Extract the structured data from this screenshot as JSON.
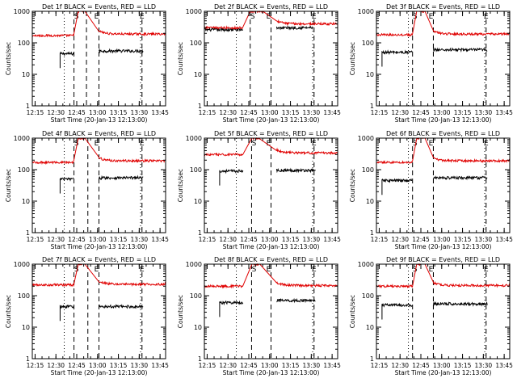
{
  "figure": {
    "x_tick_labels": [
      "12:15",
      "12:30",
      "12:45",
      "13:00",
      "13:15",
      "13:30",
      "13:45"
    ],
    "x_label": "Start Time (20-Jan-13 12:13:00)",
    "y_label": "Counts/sec",
    "y_tick_labels": [
      "1",
      "10",
      "100",
      "1000"
    ],
    "marker_labels": [
      "S",
      "E"
    ],
    "colors": {
      "events": "#000000",
      "lld": "#e00000",
      "axes": "#000000"
    }
  },
  "chart_data": [
    {
      "type": "line",
      "title": "Det 1f BLACK = Events, RED = LLD",
      "xlabel": "Start Time (20-Jan-13 12:13:00)",
      "ylabel": "Counts/sec",
      "xlim": [
        0,
        96
      ],
      "ylim": [
        1,
        1000
      ],
      "yscale": "log",
      "x_unit": "minutes after 12:13:00",
      "markers": {
        "S": {
          "start": 30,
          "end": 39
        },
        "E": {
          "start": 48,
          "end": 79
        },
        "dotted": [
          23,
          78
        ]
      },
      "series": [
        {
          "name": "Events",
          "color": "#000000",
          "segments": [
            {
              "x_start": 20,
              "x_end": 30,
              "level": 45
            },
            {
              "x_start": 48,
              "x_end": 80,
              "level": 55
            }
          ]
        },
        {
          "name": "LLD",
          "color": "#e00000",
          "segments": [
            {
              "x_start": 0,
              "x_end": 30,
              "level": 170
            },
            {
              "x_start": 33,
              "x_end": 38,
              "level": 1000
            },
            {
              "x_start": 48,
              "x_end": 96,
              "level": 190
            }
          ]
        }
      ]
    },
    {
      "type": "line",
      "title": "Det 2f BLACK = Events, RED = LLD",
      "xlabel": "Start Time (20-Jan-13 12:13:00)",
      "ylabel": "Counts/sec",
      "xlim": [
        0,
        96
      ],
      "ylim": [
        1,
        1000
      ],
      "yscale": "log",
      "x_unit": "minutes after 12:13:00",
      "markers": {
        "S": {
          "start": 33,
          "end": 48
        },
        "E": {
          "start": 48,
          "end": 79
        },
        "dotted": [
          23,
          78
        ]
      },
      "series": [
        {
          "name": "Events",
          "color": "#000000",
          "segments": [
            {
              "x_start": 0,
              "x_end": 28,
              "level": 260
            },
            {
              "x_start": 52,
              "x_end": 78,
              "level": 300
            }
          ]
        },
        {
          "name": "LLD",
          "color": "#e00000",
          "segments": [
            {
              "x_start": 0,
              "x_end": 28,
              "level": 300
            },
            {
              "x_start": 33,
              "x_end": 43,
              "level": 1000
            },
            {
              "x_start": 52,
              "x_end": 96,
              "level": 400
            }
          ]
        }
      ]
    },
    {
      "type": "line",
      "title": "Det 3f BLACK = Events, RED = LLD",
      "xlabel": "Start Time (20-Jan-13 12:13:00)",
      "ylabel": "Counts/sec",
      "xlim": [
        0,
        96
      ],
      "ylim": [
        1,
        1000
      ],
      "yscale": "log",
      "x_unit": "minutes after 12:13:00",
      "markers": {
        "S": {
          "start": 26,
          "end": 41
        },
        "E": {
          "start": 41,
          "end": 79
        },
        "dotted": [
          23,
          78
        ]
      },
      "series": [
        {
          "name": "Events",
          "color": "#000000",
          "segments": [
            {
              "x_start": 4,
              "x_end": 26,
              "level": 50
            },
            {
              "x_start": 41,
              "x_end": 80,
              "level": 60
            }
          ]
        },
        {
          "name": "LLD",
          "color": "#e00000",
          "segments": [
            {
              "x_start": 0,
              "x_end": 26,
              "level": 180
            },
            {
              "x_start": 29,
              "x_end": 35,
              "level": 1000
            },
            {
              "x_start": 41,
              "x_end": 96,
              "level": 190
            }
          ]
        }
      ]
    },
    {
      "type": "line",
      "title": "Det 4f BLACK = Events, RED = LLD",
      "xlabel": "Start Time (20-Jan-13 12:13:00)",
      "ylabel": "Counts/sec",
      "xlim": [
        0,
        96
      ],
      "ylim": [
        1,
        1000
      ],
      "yscale": "log",
      "x_unit": "minutes after 12:13:00",
      "markers": {
        "S": {
          "start": 30,
          "end": 40
        },
        "E": {
          "start": 48,
          "end": 79
        },
        "dotted": [
          23,
          78
        ]
      },
      "series": [
        {
          "name": "Events",
          "color": "#000000",
          "segments": [
            {
              "x_start": 20,
              "x_end": 30,
              "level": 50
            },
            {
              "x_start": 48,
              "x_end": 80,
              "level": 55
            }
          ]
        },
        {
          "name": "LLD",
          "color": "#e00000",
          "segments": [
            {
              "x_start": 0,
              "x_end": 30,
              "level": 170
            },
            {
              "x_start": 33,
              "x_end": 38,
              "level": 1000
            },
            {
              "x_start": 48,
              "x_end": 96,
              "level": 190
            }
          ]
        }
      ]
    },
    {
      "type": "line",
      "title": "Det 5f BLACK = Events, RED = LLD",
      "xlabel": "Start Time (20-Jan-13 12:13:00)",
      "ylabel": "Counts/sec",
      "xlim": [
        0,
        96
      ],
      "ylim": [
        1,
        1000
      ],
      "yscale": "log",
      "x_unit": "minutes after 12:13:00",
      "markers": {
        "S": {
          "start": 34,
          "end": 48
        },
        "E": {
          "start": 48,
          "end": 79
        },
        "dotted": [
          23,
          78
        ]
      },
      "series": [
        {
          "name": "Events",
          "color": "#000000",
          "segments": [
            {
              "x_start": 11,
              "x_end": 28,
              "level": 90
            },
            {
              "x_start": 52,
              "x_end": 80,
              "level": 95
            }
          ]
        },
        {
          "name": "LLD",
          "color": "#e00000",
          "segments": [
            {
              "x_start": 0,
              "x_end": 28,
              "level": 300
            },
            {
              "x_start": 34,
              "x_end": 40,
              "level": 1000
            },
            {
              "x_start": 52,
              "x_end": 96,
              "level": 340
            }
          ]
        }
      ]
    },
    {
      "type": "line",
      "title": "Det 6f BLACK = Events, RED = LLD",
      "xlabel": "Start Time (20-Jan-13 12:13:00)",
      "ylabel": "Counts/sec",
      "xlim": [
        0,
        96
      ],
      "ylim": [
        1,
        1000
      ],
      "yscale": "log",
      "x_unit": "minutes after 12:13:00",
      "markers": {
        "S": {
          "start": 26,
          "end": 41
        },
        "E": {
          "start": 41,
          "end": 79
        },
        "dotted": [
          23,
          78
        ]
      },
      "series": [
        {
          "name": "Events",
          "color": "#000000",
          "segments": [
            {
              "x_start": 4,
              "x_end": 26,
              "level": 45
            },
            {
              "x_start": 41,
              "x_end": 80,
              "level": 55
            }
          ]
        },
        {
          "name": "LLD",
          "color": "#e00000",
          "segments": [
            {
              "x_start": 0,
              "x_end": 26,
              "level": 170
            },
            {
              "x_start": 29,
              "x_end": 35,
              "level": 1000
            },
            {
              "x_start": 41,
              "x_end": 96,
              "level": 190
            }
          ]
        }
      ]
    },
    {
      "type": "line",
      "title": "Det 7f BLACK = Events, RED = LLD",
      "xlabel": "Start Time (20-Jan-13 12:13:00)",
      "ylabel": "Counts/sec",
      "xlim": [
        0,
        96
      ],
      "ylim": [
        1,
        1000
      ],
      "yscale": "log",
      "x_unit": "minutes after 12:13:00",
      "markers": {
        "S": {
          "start": 30,
          "end": 40
        },
        "E": {
          "start": 48,
          "end": 79
        },
        "dotted": [
          23,
          78
        ]
      },
      "series": [
        {
          "name": "Events",
          "color": "#000000",
          "segments": [
            {
              "x_start": 20,
              "x_end": 30,
              "level": 45
            },
            {
              "x_start": 48,
              "x_end": 80,
              "level": 45
            }
          ]
        },
        {
          "name": "LLD",
          "color": "#e00000",
          "segments": [
            {
              "x_start": 0,
              "x_end": 30,
              "level": 220
            },
            {
              "x_start": 33,
              "x_end": 38,
              "level": 1000
            },
            {
              "x_start": 48,
              "x_end": 96,
              "level": 230
            }
          ]
        }
      ]
    },
    {
      "type": "line",
      "title": "Det 8f BLACK = Events, RED = LLD",
      "xlabel": "Start Time (20-Jan-13 12:13:00)",
      "ylabel": "Counts/sec",
      "xlim": [
        0,
        96
      ],
      "ylim": [
        1,
        1000
      ],
      "yscale": "log",
      "x_unit": "minutes after 12:13:00",
      "markers": {
        "S": {
          "start": 34,
          "end": 48
        },
        "E": {
          "start": 48,
          "end": 79
        },
        "dotted": [
          23,
          78
        ]
      },
      "series": [
        {
          "name": "Events",
          "color": "#000000",
          "segments": [
            {
              "x_start": 11,
              "x_end": 28,
              "level": 60
            },
            {
              "x_start": 52,
              "x_end": 80,
              "level": 70
            }
          ]
        },
        {
          "name": "LLD",
          "color": "#e00000",
          "segments": [
            {
              "x_start": 0,
              "x_end": 28,
              "level": 200
            },
            {
              "x_start": 34,
              "x_end": 40,
              "level": 1000
            },
            {
              "x_start": 52,
              "x_end": 96,
              "level": 210
            }
          ]
        }
      ]
    },
    {
      "type": "line",
      "title": "Det 9f BLACK = Events, RED = LLD",
      "xlabel": "Start Time (20-Jan-13 12:13:00)",
      "ylabel": "Counts/sec",
      "xlim": [
        0,
        96
      ],
      "ylim": [
        1,
        1000
      ],
      "yscale": "log",
      "x_unit": "minutes after 12:13:00",
      "markers": {
        "S": {
          "start": 26,
          "end": 41
        },
        "E": {
          "start": 41,
          "end": 79
        },
        "dotted": [
          23,
          78
        ]
      },
      "series": [
        {
          "name": "Events",
          "color": "#000000",
          "segments": [
            {
              "x_start": 4,
              "x_end": 26,
              "level": 50
            },
            {
              "x_start": 41,
              "x_end": 80,
              "level": 55
            }
          ]
        },
        {
          "name": "LLD",
          "color": "#e00000",
          "segments": [
            {
              "x_start": 0,
              "x_end": 26,
              "level": 200
            },
            {
              "x_start": 29,
              "x_end": 35,
              "level": 1000
            },
            {
              "x_start": 41,
              "x_end": 96,
              "level": 210
            }
          ]
        }
      ]
    }
  ]
}
